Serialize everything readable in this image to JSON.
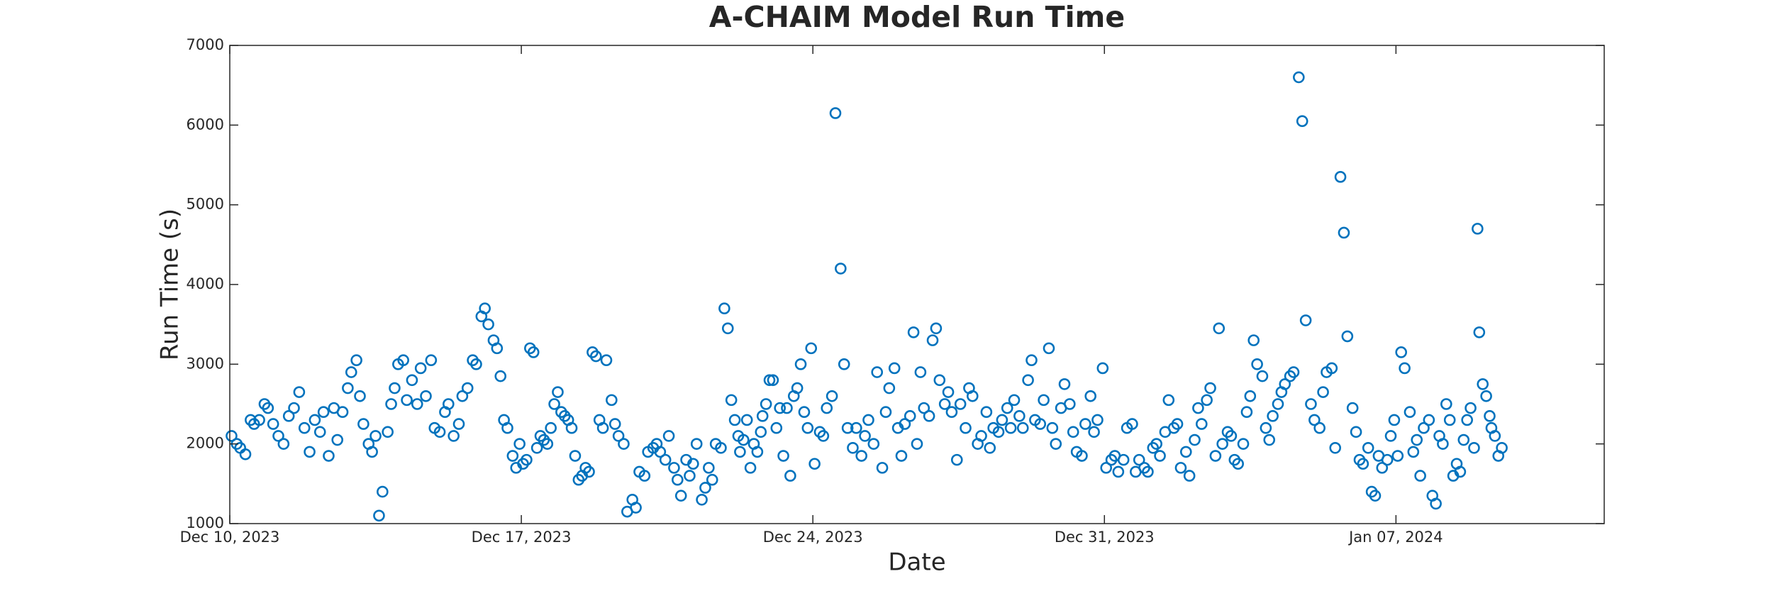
{
  "chart_data": {
    "type": "scatter",
    "title": "A-CHAIM Model Run Time",
    "x_label": "Date",
    "y_label": "Run Time (s)",
    "color": "#0072bd",
    "xlim": [
      "2023-12-10",
      "2024-01-12"
    ],
    "xticks": [
      {
        "value": "2023-12-10",
        "label": "Dec 10, 2023"
      },
      {
        "value": "2023-12-17",
        "label": "Dec 17, 2023"
      },
      {
        "value": "2023-12-24",
        "label": "Dec 24, 2023"
      },
      {
        "value": "2023-12-31",
        "label": "Dec 31, 2023"
      },
      {
        "value": "2024-01-07",
        "label": "Jan 07, 2024"
      }
    ],
    "ylim": [
      1000,
      7000
    ],
    "yticks": [
      1000,
      2000,
      3000,
      4000,
      5000,
      6000,
      7000
    ],
    "x": [
      "2023-12-10T01:00",
      "2023-12-10T04:00",
      "2023-12-10T06:00",
      "2023-12-10T09:00",
      "2023-12-10T12:00",
      "2023-12-10T14:00",
      "2023-12-10T17:00",
      "2023-12-10T20:00",
      "2023-12-10T22:00",
      "2023-12-11T01:00",
      "2023-12-11T04:00",
      "2023-12-11T07:00",
      "2023-12-11T10:00",
      "2023-12-11T13:00",
      "2023-12-11T16:00",
      "2023-12-11T19:00",
      "2023-12-11T22:00",
      "2023-12-12T01:00",
      "2023-12-12T04:00",
      "2023-12-12T06:00",
      "2023-12-12T09:00",
      "2023-12-12T12:00",
      "2023-12-12T14:00",
      "2023-12-12T17:00",
      "2023-12-12T20:00",
      "2023-12-12T22:00",
      "2023-12-13T01:00",
      "2023-12-13T03:00",
      "2023-12-13T05:00",
      "2023-12-13T08:00",
      "2023-12-13T10:00",
      "2023-12-13T12:00",
      "2023-12-13T14:00",
      "2023-12-13T16:00",
      "2023-12-13T19:00",
      "2023-12-13T21:00",
      "2023-12-13T23:00",
      "2023-12-14T01:00",
      "2023-12-14T04:00",
      "2023-12-14T06:00",
      "2023-12-14T09:00",
      "2023-12-14T12:00",
      "2023-12-14T14:00",
      "2023-12-14T17:00",
      "2023-12-14T20:00",
      "2023-12-14T22:00",
      "2023-12-15T01:00",
      "2023-12-15T04:00",
      "2023-12-15T06:00",
      "2023-12-15T09:00",
      "2023-12-15T12:00",
      "2023-12-15T14:00",
      "2023-12-15T17:00",
      "2023-12-15T20:00",
      "2023-12-15T22:00",
      "2023-12-16T01:00",
      "2023-12-16T03:00",
      "2023-12-16T05:00",
      "2023-12-16T08:00",
      "2023-12-16T10:00",
      "2023-12-16T12:00",
      "2023-12-16T14:00",
      "2023-12-16T16:00",
      "2023-12-16T19:00",
      "2023-12-16T21:00",
      "2023-12-16T23:00",
      "2023-12-17T01:00",
      "2023-12-17T03:00",
      "2023-12-17T05:00",
      "2023-12-17T07:00",
      "2023-12-17T09:00",
      "2023-12-17T11:00",
      "2023-12-17T13:00",
      "2023-12-17T15:00",
      "2023-12-17T17:00",
      "2023-12-17T19:00",
      "2023-12-17T21:00",
      "2023-12-17T23:00",
      "2023-12-18T01:00",
      "2023-12-18T03:00",
      "2023-12-18T05:00",
      "2023-12-18T07:00",
      "2023-12-18T09:00",
      "2023-12-18T11:00",
      "2023-12-18T13:00",
      "2023-12-18T15:00",
      "2023-12-18T17:00",
      "2023-12-18T19:00",
      "2023-12-18T21:00",
      "2023-12-18T23:00",
      "2023-12-19T01:00",
      "2023-12-19T04:00",
      "2023-12-19T06:00",
      "2023-12-19T08:00",
      "2023-12-19T11:00",
      "2023-12-19T13:00",
      "2023-12-19T16:00",
      "2023-12-19T18:00",
      "2023-12-19T20:00",
      "2023-12-19T23:00",
      "2023-12-20T01:00",
      "2023-12-20T04:00",
      "2023-12-20T06:00",
      "2023-12-20T08:00",
      "2023-12-20T11:00",
      "2023-12-20T13:00",
      "2023-12-20T16:00",
      "2023-12-20T18:00",
      "2023-12-20T20:00",
      "2023-12-20T23:00",
      "2023-12-21T01:00",
      "2023-12-21T03:00",
      "2023-12-21T05:00",
      "2023-12-21T08:00",
      "2023-12-21T10:00",
      "2023-12-21T12:00",
      "2023-12-21T14:00",
      "2023-12-21T16:00",
      "2023-12-21T19:00",
      "2023-12-21T21:00",
      "2023-12-21T23:00",
      "2023-12-22T01:00",
      "2023-12-22T03:00",
      "2023-12-22T05:00",
      "2023-12-22T06:00",
      "2023-12-22T08:00",
      "2023-12-22T10:00",
      "2023-12-22T12:00",
      "2023-12-22T14:00",
      "2023-12-22T16:00",
      "2023-12-22T18:00",
      "2023-12-22T19:00",
      "2023-12-22T21:00",
      "2023-12-22T23:00",
      "2023-12-23T01:00",
      "2023-12-23T03:00",
      "2023-12-23T05:00",
      "2023-12-23T07:00",
      "2023-12-23T09:00",
      "2023-12-23T11:00",
      "2023-12-23T13:00",
      "2023-12-23T15:00",
      "2023-12-23T17:00",
      "2023-12-23T19:00",
      "2023-12-23T21:00",
      "2023-12-23T23:00",
      "2023-12-24T01:00",
      "2023-12-24T04:00",
      "2023-12-24T06:00",
      "2023-12-24T08:00",
      "2023-12-24T11:00",
      "2023-12-24T13:00",
      "2023-12-24T16:00",
      "2023-12-24T18:00",
      "2023-12-24T20:00",
      "2023-12-24T23:00",
      "2023-12-25T01:00",
      "2023-12-25T04:00",
      "2023-12-25T06:00",
      "2023-12-25T08:00",
      "2023-12-25T11:00",
      "2023-12-25T13:00",
      "2023-12-25T16:00",
      "2023-12-25T18:00",
      "2023-12-25T20:00",
      "2023-12-25T23:00",
      "2023-12-26T01:00",
      "2023-12-26T03:00",
      "2023-12-26T05:00",
      "2023-12-26T08:00",
      "2023-12-26T10:00",
      "2023-12-26T12:00",
      "2023-12-26T14:00",
      "2023-12-26T16:00",
      "2023-12-26T19:00",
      "2023-12-26T21:00",
      "2023-12-26T23:00",
      "2023-12-27T01:00",
      "2023-12-27T04:00",
      "2023-12-27T06:00",
      "2023-12-27T08:00",
      "2023-12-27T11:00",
      "2023-12-27T13:00",
      "2023-12-27T16:00",
      "2023-12-27T18:00",
      "2023-12-27T20:00",
      "2023-12-27T23:00",
      "2023-12-28T01:00",
      "2023-12-28T04:00",
      "2023-12-28T06:00",
      "2023-12-28T08:00",
      "2023-12-28T11:00",
      "2023-12-28T13:00",
      "2023-12-28T16:00",
      "2023-12-28T18:00",
      "2023-12-28T20:00",
      "2023-12-28T23:00",
      "2023-12-29T01:00",
      "2023-12-29T04:00",
      "2023-12-29T06:00",
      "2023-12-29T08:00",
      "2023-12-29T11:00",
      "2023-12-29T13:00",
      "2023-12-29T16:00",
      "2023-12-29T18:00",
      "2023-12-29T20:00",
      "2023-12-29T23:00",
      "2023-12-30T01:00",
      "2023-12-30T04:00",
      "2023-12-30T06:00",
      "2023-12-30T08:00",
      "2023-12-30T11:00",
      "2023-12-30T13:00",
      "2023-12-30T16:00",
      "2023-12-30T18:00",
      "2023-12-30T20:00",
      "2023-12-30T23:00",
      "2023-12-31T01:00",
      "2023-12-31T04:00",
      "2023-12-31T06:00",
      "2023-12-31T08:00",
      "2023-12-31T11:00",
      "2023-12-31T13:00",
      "2023-12-31T16:00",
      "2023-12-31T18:00",
      "2023-12-31T20:00",
      "2023-12-31T23:00",
      "2024-01-01T01:00",
      "2024-01-01T04:00",
      "2024-01-01T06:00",
      "2024-01-01T08:00",
      "2024-01-01T11:00",
      "2024-01-01T13:00",
      "2024-01-01T16:00",
      "2024-01-01T18:00",
      "2024-01-01T20:00",
      "2024-01-01T23:00",
      "2024-01-02T01:00",
      "2024-01-02T04:00",
      "2024-01-02T06:00",
      "2024-01-02T08:00",
      "2024-01-02T11:00",
      "2024-01-02T13:00",
      "2024-01-02T16:00",
      "2024-01-02T18:00",
      "2024-01-02T20:00",
      "2024-01-02T23:00",
      "2024-01-03T01:00",
      "2024-01-03T03:00",
      "2024-01-03T05:00",
      "2024-01-03T08:00",
      "2024-01-03T10:00",
      "2024-01-03T12:00",
      "2024-01-03T14:00",
      "2024-01-03T16:00",
      "2024-01-03T19:00",
      "2024-01-03T21:00",
      "2024-01-03T23:00",
      "2024-01-04T01:00",
      "2024-01-04T04:00",
      "2024-01-04T06:00",
      "2024-01-04T08:00",
      "2024-01-04T11:00",
      "2024-01-04T13:00",
      "2024-01-04T16:00",
      "2024-01-04T18:00",
      "2024-01-04T20:00",
      "2024-01-04T23:00",
      "2024-01-05T01:00",
      "2024-01-05T04:00",
      "2024-01-05T06:00",
      "2024-01-05T08:00",
      "2024-01-05T11:00",
      "2024-01-05T13:00",
      "2024-01-05T16:00",
      "2024-01-05T18:00",
      "2024-01-05T20:00",
      "2024-01-05T23:00",
      "2024-01-06T01:00",
      "2024-01-06T03:00",
      "2024-01-06T05:00",
      "2024-01-06T08:00",
      "2024-01-06T10:00",
      "2024-01-06T12:00",
      "2024-01-06T14:00",
      "2024-01-06T16:00",
      "2024-01-06T19:00",
      "2024-01-06T21:00",
      "2024-01-06T23:00",
      "2024-01-07T01:00",
      "2024-01-07T03:00",
      "2024-01-07T05:00",
      "2024-01-07T08:00",
      "2024-01-07T10:00",
      "2024-01-07T12:00",
      "2024-01-07T14:00",
      "2024-01-07T16:00",
      "2024-01-07T19:00",
      "2024-01-07T21:00",
      "2024-01-07T23:00",
      "2024-01-08T01:00",
      "2024-01-08T03:00",
      "2024-01-08T05:00",
      "2024-01-08T07:00",
      "2024-01-08T09:00",
      "2024-01-08T11:00",
      "2024-01-08T13:00",
      "2024-01-08T15:00",
      "2024-01-08T17:00",
      "2024-01-08T19:00",
      "2024-01-08T21:00",
      "2024-01-08T23:00",
      "2024-01-09T00:00",
      "2024-01-09T02:00",
      "2024-01-09T04:00",
      "2024-01-09T06:00",
      "2024-01-09T07:00",
      "2024-01-09T09:00",
      "2024-01-09T11:00",
      "2024-01-09T13:00"
    ],
    "values": [
      2100,
      2000,
      1950,
      1870,
      2300,
      2250,
      2300,
      2500,
      2450,
      2250,
      2100,
      2000,
      2350,
      2450,
      2650,
      2200,
      1900,
      2300,
      2150,
      2400,
      1850,
      2450,
      2050,
      2400,
      2700,
      2900,
      3050,
      2600,
      2250,
      2000,
      1900,
      2100,
      1100,
      1400,
      2150,
      2500,
      2700,
      3000,
      3050,
      2550,
      2800,
      2500,
      2950,
      2600,
      3050,
      2200,
      2150,
      2400,
      2500,
      2100,
      2250,
      2600,
      2700,
      3050,
      3000,
      3600,
      3700,
      3500,
      3300,
      3200,
      2850,
      2300,
      2200,
      1850,
      1700,
      2000,
      1750,
      1800,
      3200,
      3150,
      1950,
      2100,
      2050,
      2000,
      2200,
      2500,
      2650,
      2400,
      2350,
      2300,
      2200,
      1850,
      1550,
      1600,
      1700,
      1650,
      3150,
      3100,
      2300,
      2200,
      3050,
      2550,
      2250,
      2100,
      2000,
      1150,
      1300,
      1200,
      1650,
      1600,
      1900,
      1950,
      2000,
      1900,
      1800,
      2100,
      1700,
      1550,
      1350,
      1800,
      1600,
      1750,
      2000,
      1300,
      1450,
      1700,
      1550,
      2000,
      1950,
      3700,
      3450,
      2550,
      2300,
      2100,
      1900,
      2050,
      2300,
      1700,
      2000,
      1900,
      2150,
      2350,
      2500,
      2800,
      2800,
      2200,
      2450,
      1850,
      2450,
      1600,
      2600,
      2700,
      3000,
      2400,
      2200,
      3200,
      1750,
      2150,
      2100,
      2450,
      2600,
      6150,
      4200,
      3000,
      2200,
      1950,
      2200,
      1850,
      2100,
      2300,
      2000,
      2900,
      1700,
      2400,
      2700,
      2950,
      2200,
      1850,
      2250,
      2350,
      3400,
      2000,
      2900,
      2450,
      2350,
      3300,
      3450,
      2800,
      2500,
      2650,
      2400,
      1800,
      2500,
      2200,
      2700,
      2600,
      2000,
      2100,
      2400,
      1950,
      2200,
      2150,
      2300,
      2450,
      2200,
      2550,
      2350,
      2200,
      2800,
      3050,
      2300,
      2250,
      2550,
      3200,
      2200,
      2000,
      2450,
      2750,
      2500,
      2150,
      1900,
      1850,
      2250,
      2600,
      2150,
      2300,
      2950,
      1700,
      1800,
      1850,
      1650,
      1800,
      2200,
      2250,
      1650,
      1800,
      1700,
      1650,
      1950,
      2000,
      1850,
      2150,
      2550,
      2200,
      2250,
      1700,
      1900,
      1600,
      2050,
      2450,
      2250,
      2550,
      2700,
      1850,
      3450,
      2000,
      2150,
      2100,
      1800,
      1750,
      2000,
      2400,
      2600,
      3300,
      3000,
      2850,
      2200,
      2050,
      2350,
      2500,
      2650,
      2750,
      2850,
      2900,
      6600,
      6050,
      3550,
      2500,
      2300,
      2200,
      2650,
      2900,
      2950,
      1950,
      5350,
      4650,
      3350,
      2450,
      2150,
      1800,
      1750,
      1950,
      1400,
      1350,
      1850,
      1700,
      1800,
      2100,
      2300,
      1850,
      3150,
      2950,
      2400,
      1900,
      2050,
      1600,
      2200,
      2300,
      1350,
      1250,
      2100,
      2000,
      2500,
      2300,
      1600,
      1750,
      1650,
      2050,
      2300,
      2450,
      1950,
      4700,
      3400,
      2750,
      2600,
      2350,
      2200,
      2100,
      1850,
      1950
    ]
  }
}
